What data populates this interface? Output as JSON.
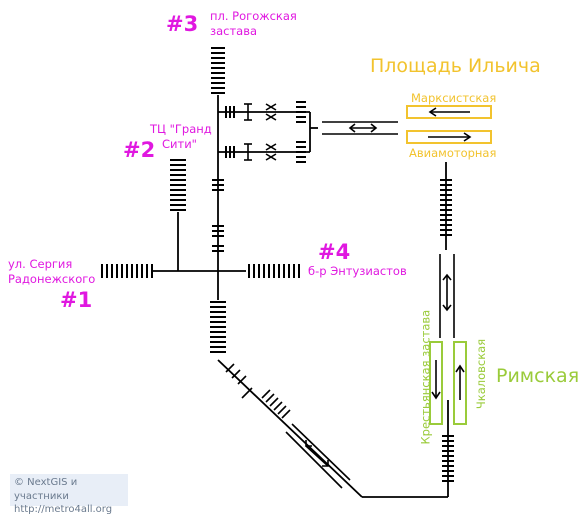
{
  "labels": {
    "exit3": {
      "number": "#3",
      "line1": "пл. Рогожская",
      "line2": "застава"
    },
    "exit2": {
      "number": "#2",
      "line1": "ТЦ \"Гранд",
      "line2": "Сити\""
    },
    "exit1": {
      "number": "#1",
      "line1": "ул. Сергия",
      "line2": "Радонежского"
    },
    "exit4": {
      "number": "#4",
      "line1": "б-р Энтузиастов"
    },
    "station_ilyicha": "Площадь Ильича",
    "platform_marksistskaya": "Марксистская",
    "platform_aviamotornaya": "Авиамоторная",
    "station_rimskaya": "Римская",
    "platform_krestyanskaya": "Крестьянская застава",
    "platform_chkalovskaya": "Чкаловская"
  },
  "copyright": {
    "line1": "© NextGIS и участники",
    "line2": "http://metro4all.org"
  },
  "colors": {
    "exit_pink": "#e018e0",
    "line8_yellow": "#f2c32e",
    "line10_green": "#9acb3a",
    "path": "#000000"
  }
}
